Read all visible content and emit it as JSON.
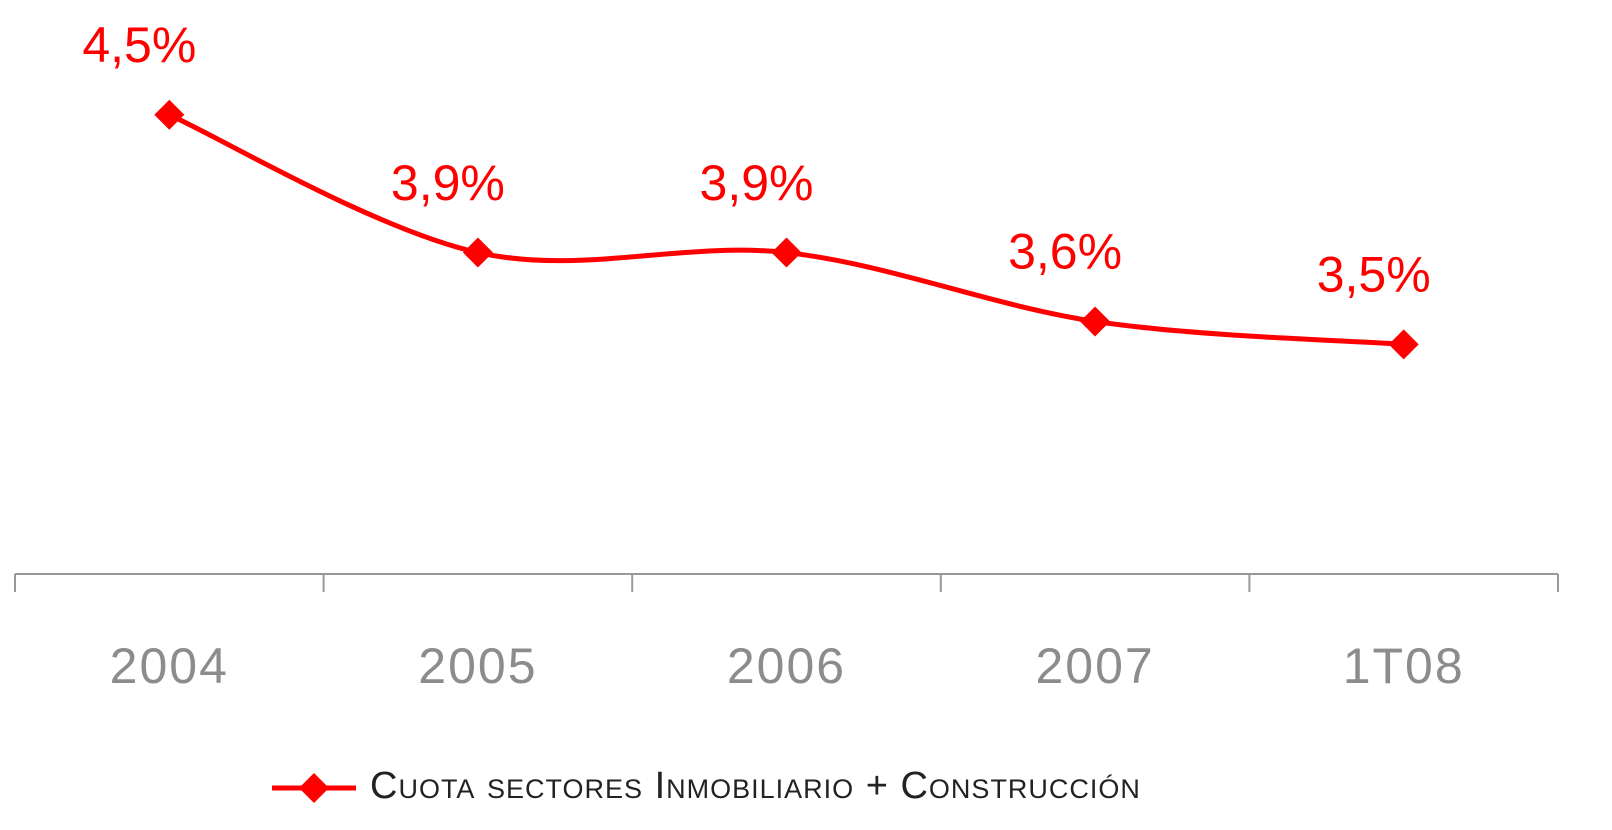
{
  "chart_data": {
    "type": "line",
    "categories": [
      "2004",
      "2005",
      "2006",
      "2007",
      "1T08"
    ],
    "series": [
      {
        "name": "Cuota sectores Inmobiliario + Construcción",
        "color": "#ff0000",
        "values": [
          4.5,
          3.9,
          3.9,
          3.6,
          3.5
        ],
        "value_labels": [
          "4,5%",
          "3,9%",
          "3,9%",
          "3,6%",
          "3,5%"
        ]
      }
    ],
    "ylim": [
      2.5,
      5
    ],
    "grid": false,
    "legend": "bottom"
  }
}
